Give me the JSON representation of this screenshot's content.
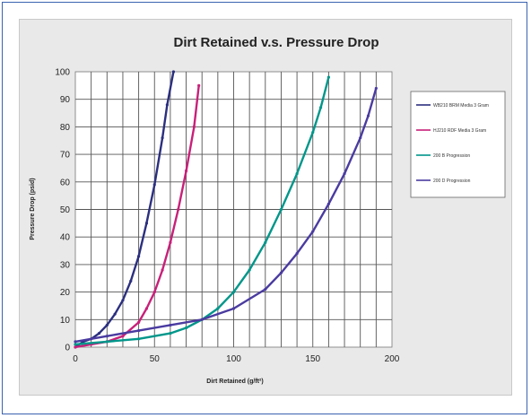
{
  "chart_data": {
    "type": "line",
    "title": "Dirt Retained v.s. Pressure Drop",
    "xlabel": "Dirt Retained (g/ft²)",
    "ylabel": "Pressure Drop (psid)",
    "xlim": [
      0,
      200
    ],
    "ylim": [
      0,
      100
    ],
    "xticks": [
      0,
      50,
      100,
      150,
      200
    ],
    "yticks": [
      0,
      10,
      20,
      30,
      40,
      50,
      60,
      70,
      80,
      90,
      100
    ],
    "grid": true,
    "legend_position": "right",
    "series": [
      {
        "name": "WB210 BRM Media 3 Gram",
        "color": "#2b2f7f",
        "x": [
          0,
          5,
          10,
          15,
          20,
          25,
          30,
          35,
          40,
          45,
          50,
          55,
          58,
          62
        ],
        "y": [
          0,
          2,
          3,
          5,
          8,
          12,
          17,
          24,
          33,
          45,
          59,
          76,
          88,
          100
        ]
      },
      {
        "name": "HJ210 RDF Media 3 Gram",
        "color": "#c8207a",
        "x": [
          0,
          10,
          20,
          30,
          40,
          45,
          50,
          55,
          60,
          65,
          70,
          75,
          78
        ],
        "y": [
          0,
          1,
          2,
          4,
          9,
          14,
          20,
          28,
          38,
          50,
          64,
          80,
          95
        ]
      },
      {
        "name": "200 B Progression",
        "color": "#00968a",
        "x": [
          0,
          20,
          40,
          60,
          70,
          80,
          90,
          100,
          110,
          120,
          130,
          140,
          150,
          155,
          160
        ],
        "y": [
          1,
          2,
          3,
          5,
          7,
          10,
          14,
          20,
          28,
          38,
          50,
          63,
          78,
          87,
          98
        ]
      },
      {
        "name": "200 D Progression",
        "color": "#4a3ba0",
        "x": [
          0,
          20,
          40,
          60,
          80,
          100,
          120,
          130,
          140,
          150,
          160,
          170,
          180,
          185,
          190
        ],
        "y": [
          2,
          4,
          6,
          8,
          10,
          14,
          21,
          27,
          34,
          42,
          52,
          63,
          76,
          84,
          94
        ]
      }
    ]
  }
}
